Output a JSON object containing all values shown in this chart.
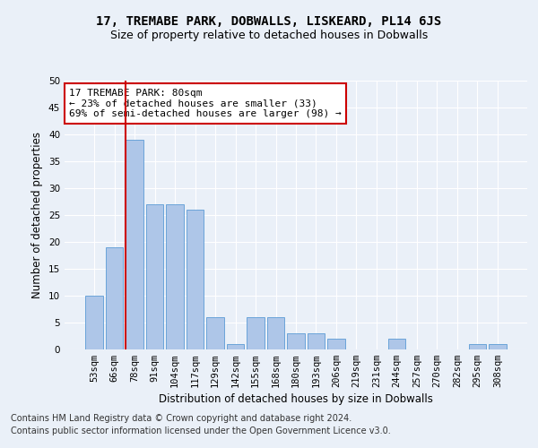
{
  "title": "17, TREMABE PARK, DOBWALLS, LISKEARD, PL14 6JS",
  "subtitle": "Size of property relative to detached houses in Dobwalls",
  "xlabel": "Distribution of detached houses by size in Dobwalls",
  "ylabel": "Number of detached properties",
  "bar_labels": [
    "53sqm",
    "66sqm",
    "78sqm",
    "91sqm",
    "104sqm",
    "117sqm",
    "129sqm",
    "142sqm",
    "155sqm",
    "168sqm",
    "180sqm",
    "193sqm",
    "206sqm",
    "219sqm",
    "231sqm",
    "244sqm",
    "257sqm",
    "270sqm",
    "282sqm",
    "295sqm",
    "308sqm"
  ],
  "bar_values": [
    10,
    19,
    39,
    27,
    27,
    26,
    6,
    1,
    6,
    6,
    3,
    3,
    2,
    0,
    0,
    2,
    0,
    0,
    0,
    1,
    1
  ],
  "bar_color": "#aec6e8",
  "bar_edge_color": "#5b9bd5",
  "annotation_text": "17 TREMABE PARK: 80sqm\n← 23% of detached houses are smaller (33)\n69% of semi-detached houses are larger (98) →",
  "annotation_box_color": "#ffffff",
  "annotation_box_edge": "#cc0000",
  "vline_color": "#cc0000",
  "ylim": [
    0,
    50
  ],
  "yticks": [
    0,
    5,
    10,
    15,
    20,
    25,
    30,
    35,
    40,
    45,
    50
  ],
  "footer1": "Contains HM Land Registry data © Crown copyright and database right 2024.",
  "footer2": "Contains public sector information licensed under the Open Government Licence v3.0.",
  "bg_color": "#eaf0f8",
  "fig_color": "#eaf0f8",
  "grid_color": "#ffffff",
  "title_fontsize": 10,
  "subtitle_fontsize": 9,
  "axis_label_fontsize": 8.5,
  "tick_fontsize": 7.5,
  "annotation_fontsize": 8,
  "footer_fontsize": 7
}
